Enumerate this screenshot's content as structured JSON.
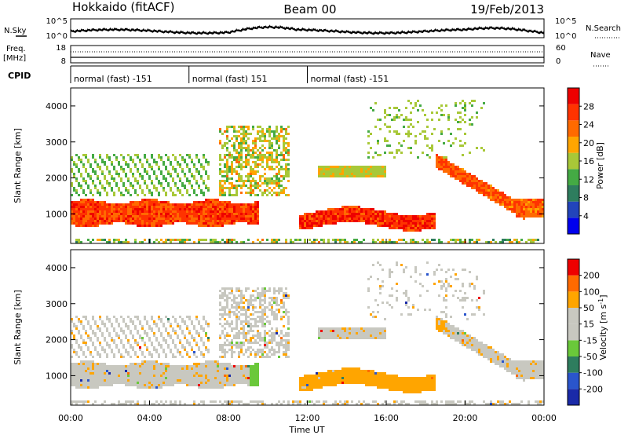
{
  "header": {
    "station": "Hokkaido (fitACF)",
    "beam": "Beam 00",
    "date": "19/Feb/2013"
  },
  "top_panels": {
    "nsky_label": "N.Sky",
    "nsky_ticks": [
      "10^5",
      "10^0"
    ],
    "nsearch_label": "N.Search",
    "nsearch_ticks": [
      "10^5",
      "10^0"
    ],
    "freq_label": "Freq.",
    "freq_unit": "[MHz]",
    "freq_ticks": [
      "18",
      "8"
    ],
    "nave_label": "Nave",
    "nave_ticks": [
      "60",
      "0"
    ],
    "cpid_label": "CPID",
    "cpid_segments": [
      {
        "start_hour": 0,
        "end_hour": 6,
        "text": "normal (fast) -151"
      },
      {
        "start_hour": 6,
        "end_hour": 12,
        "text": "normal (fast) 151"
      },
      {
        "start_hour": 12,
        "end_hour": 24,
        "text": "normal (fast) -151"
      }
    ]
  },
  "colors": {
    "power_scale": [
      "#0000ee",
      "#2244bb",
      "#2e7d5e",
      "#44aa44",
      "#a8c838",
      "#ffa500",
      "#ff6a00",
      "#ff3300",
      "#ee0000"
    ],
    "velocity_scale": [
      "#1a2aa8",
      "#2a55cc",
      "#2e7d5e",
      "#6ac83a",
      "#c8c8c0",
      "#c8c8c0",
      "#ffa500",
      "#ff6a00",
      "#ee0000"
    ]
  },
  "chart_data": [
    {
      "type": "heatmap",
      "name_hint": "power",
      "ylabel": "Slant Range [km]",
      "yticks": [
        "4000",
        "3000",
        "2000",
        "1000"
      ],
      "ytick_values": [
        4000,
        3000,
        2000,
        1000
      ],
      "ylim": [
        180,
        4500
      ],
      "xlim": [
        0,
        24
      ],
      "colorbar_label": "Power [dB]",
      "colorbar_ticks": [
        "28",
        "24",
        "20",
        "16",
        "12",
        "8",
        "4"
      ],
      "colorbar_tick_values": [
        28,
        24,
        20,
        16,
        12,
        8,
        4
      ],
      "colorbar_range": [
        0,
        32
      ]
    },
    {
      "type": "heatmap",
      "name_hint": "velocity",
      "ylabel": "Slant Range [km]",
      "yticks": [
        "4000",
        "3000",
        "2000",
        "1000"
      ],
      "ytick_values": [
        4000,
        3000,
        2000,
        1000
      ],
      "ylim": [
        180,
        4500
      ],
      "xlim": [
        0,
        24
      ],
      "xlabel": "Time UT",
      "xticks": [
        "00:00",
        "04:00",
        "08:00",
        "12:00",
        "16:00",
        "20:00",
        "00:00"
      ],
      "xtick_values": [
        0,
        4,
        8,
        12,
        16,
        20,
        24
      ],
      "colorbar_label": "Velocity [m s-1]",
      "colorbar_ticks": [
        "200",
        "100",
        "50",
        "15",
        "-15",
        "-50",
        "-100",
        "-200"
      ],
      "colorbar_segments": 9
    }
  ]
}
